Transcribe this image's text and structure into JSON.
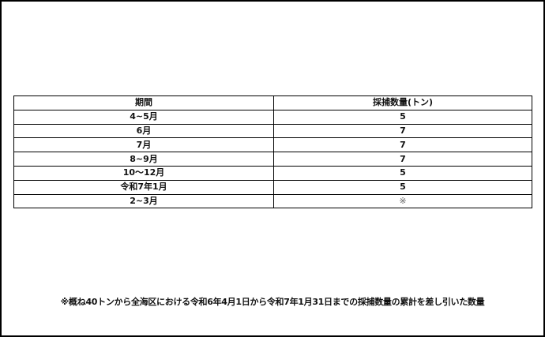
{
  "table": {
    "headers": [
      "期間",
      "採捕数量(トン)"
    ],
    "rows": [
      [
        "4~5月",
        "5"
      ],
      [
        "6月",
        "7"
      ],
      [
        "7月",
        "7"
      ],
      [
        "8~9月",
        "7"
      ],
      [
        "10～12月",
        "5"
      ],
      [
        "令和7年1月",
        "5"
      ],
      [
        "2~3月",
        "※"
      ]
    ]
  },
  "footnote": "※概ね40トンから全海区における令和6年4月1日から令和7年1月31日までの採捕数量の累計を差し引いた数量"
}
